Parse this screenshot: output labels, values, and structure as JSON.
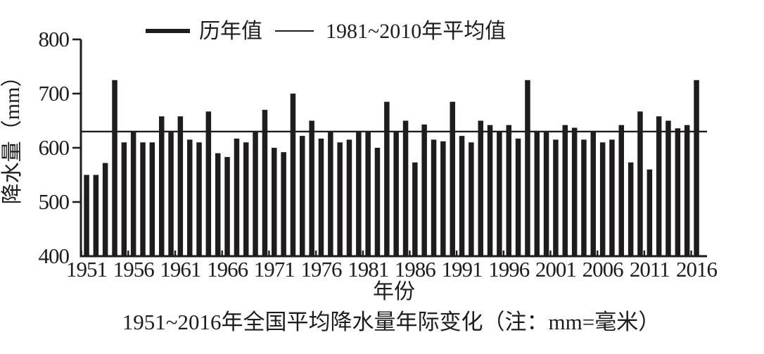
{
  "chart_data": {
    "type": "bar",
    "title": "1951~2016年全国平均降水量年际变化（注：mm=毫米）",
    "xlabel": "年份",
    "ylabel": "降水量（mm）",
    "ylim": [
      400,
      800
    ],
    "yticks": [
      400,
      500,
      600,
      700,
      800
    ],
    "xticks": [
      1951,
      1956,
      1961,
      1966,
      1971,
      1976,
      1981,
      1986,
      1991,
      1996,
      2001,
      2006,
      2011,
      2016
    ],
    "grid": false,
    "legend_position": "top",
    "legend": [
      {
        "label": "历年值",
        "style": "thick-line"
      },
      {
        "label": "1981~2010年平均值",
        "style": "thin-line"
      }
    ],
    "average_line": {
      "label": "1981~2010年平均值",
      "value": 630
    },
    "bar_color": "#1f1c1d",
    "line_color": "#1f1c1d",
    "years": [
      1951,
      1952,
      1953,
      1954,
      1955,
      1956,
      1957,
      1958,
      1959,
      1960,
      1961,
      1962,
      1963,
      1964,
      1965,
      1966,
      1967,
      1968,
      1969,
      1970,
      1971,
      1972,
      1973,
      1974,
      1975,
      1976,
      1977,
      1978,
      1979,
      1980,
      1981,
      1982,
      1983,
      1984,
      1985,
      1986,
      1987,
      1988,
      1989,
      1990,
      1991,
      1992,
      1993,
      1994,
      1995,
      1996,
      1997,
      1998,
      1999,
      2000,
      2001,
      2002,
      2003,
      2004,
      2005,
      2006,
      2007,
      2008,
      2009,
      2010,
      2011,
      2012,
      2013,
      2014,
      2015,
      2016
    ],
    "series": [
      {
        "name": "历年值",
        "values": [
          550,
          550,
          572,
          725,
          610,
          630,
          610,
          610,
          658,
          630,
          658,
          615,
          610,
          667,
          590,
          583,
          617,
          610,
          630,
          670,
          600,
          592,
          700,
          622,
          650,
          617,
          630,
          610,
          615,
          630,
          630,
          600,
          685,
          630,
          650,
          573,
          643,
          615,
          612,
          685,
          622,
          610,
          650,
          642,
          630,
          642,
          617,
          725,
          630,
          630,
          615,
          642,
          637,
          615,
          630,
          610,
          615,
          642,
          573,
          667,
          560,
          658,
          650,
          636,
          642,
          725
        ]
      }
    ]
  }
}
